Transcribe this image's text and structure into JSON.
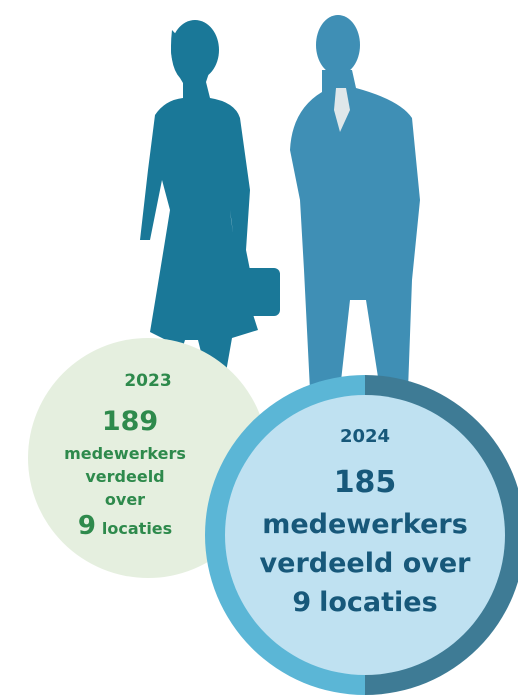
{
  "circles": [
    {
      "year": "2023",
      "count": "189",
      "line1": "medewerkers",
      "line2": "verdeeld",
      "line3": "over",
      "locations": "9",
      "locations_label": "locaties"
    },
    {
      "year": "2024",
      "count": "185",
      "line1": "medewerkers",
      "line2": "verdeeld over",
      "locations": "9",
      "locations_label": "locaties"
    }
  ]
}
